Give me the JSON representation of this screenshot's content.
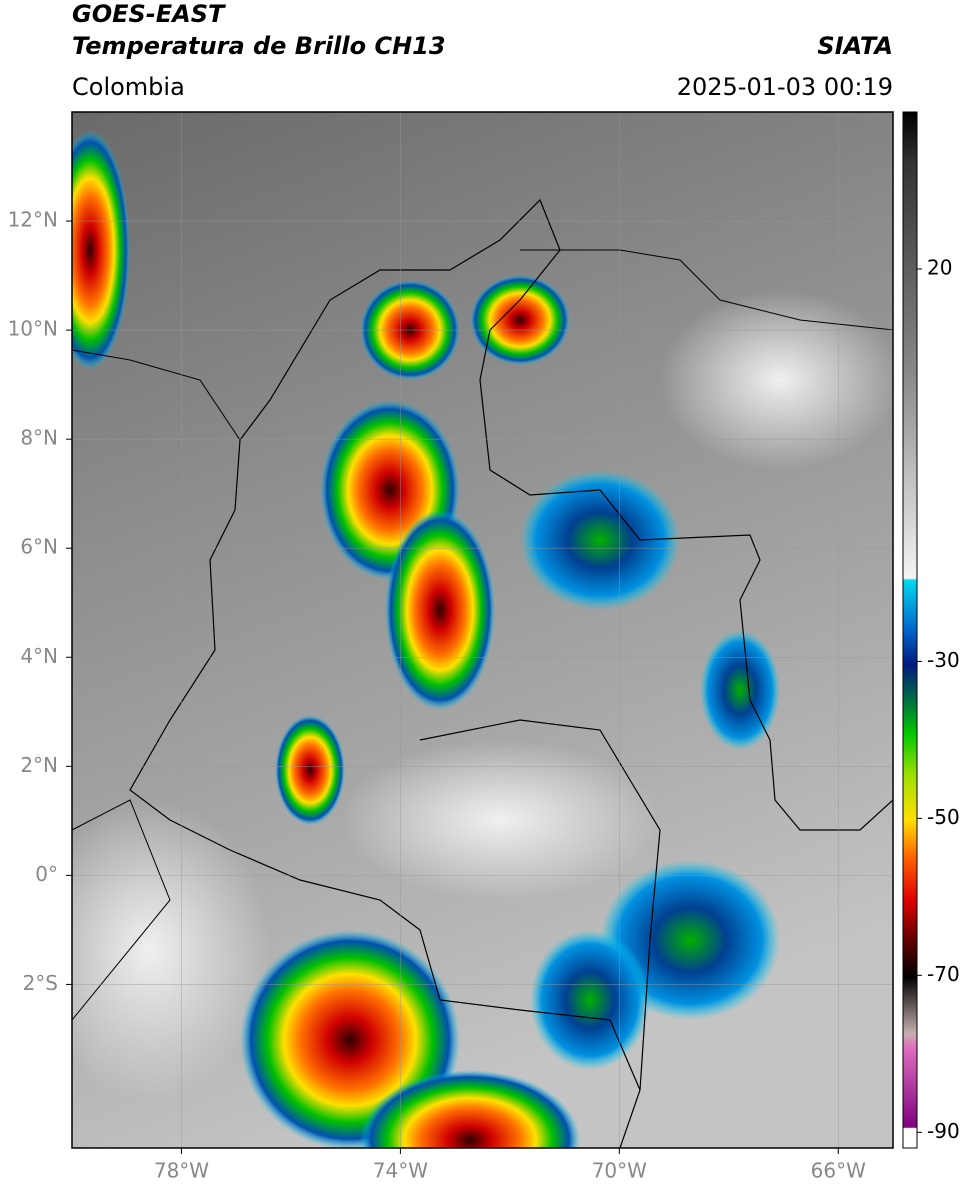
{
  "header": {
    "satellite": "GOES-EAST",
    "product": "Temperatura de Brillo CH13",
    "region": "Colombia",
    "source": "SIATA",
    "datetime": "2025-01-03 00:19"
  },
  "map": {
    "xlim": [
      -80,
      -65
    ],
    "ylim": [
      -5,
      14
    ],
    "xticks": [
      {
        "value": -78,
        "label": "78°W"
      },
      {
        "value": -74,
        "label": "74°W"
      },
      {
        "value": -70,
        "label": "70°W"
      },
      {
        "value": -66,
        "label": "66°W"
      }
    ],
    "yticks": [
      {
        "value": 12,
        "label": "12°N"
      },
      {
        "value": 10,
        "label": "10°N"
      },
      {
        "value": 8,
        "label": "8°N"
      },
      {
        "value": 6,
        "label": "6°N"
      },
      {
        "value": 4,
        "label": "4°N"
      },
      {
        "value": 2,
        "label": "2°N"
      },
      {
        "value": 0,
        "label": "0°"
      },
      {
        "value": -2,
        "label": "2°S"
      }
    ],
    "grid": true
  },
  "colorbar": {
    "lim": [
      -92,
      40
    ],
    "ticks": [
      20,
      -30,
      -50,
      -70,
      -90
    ]
  }
}
